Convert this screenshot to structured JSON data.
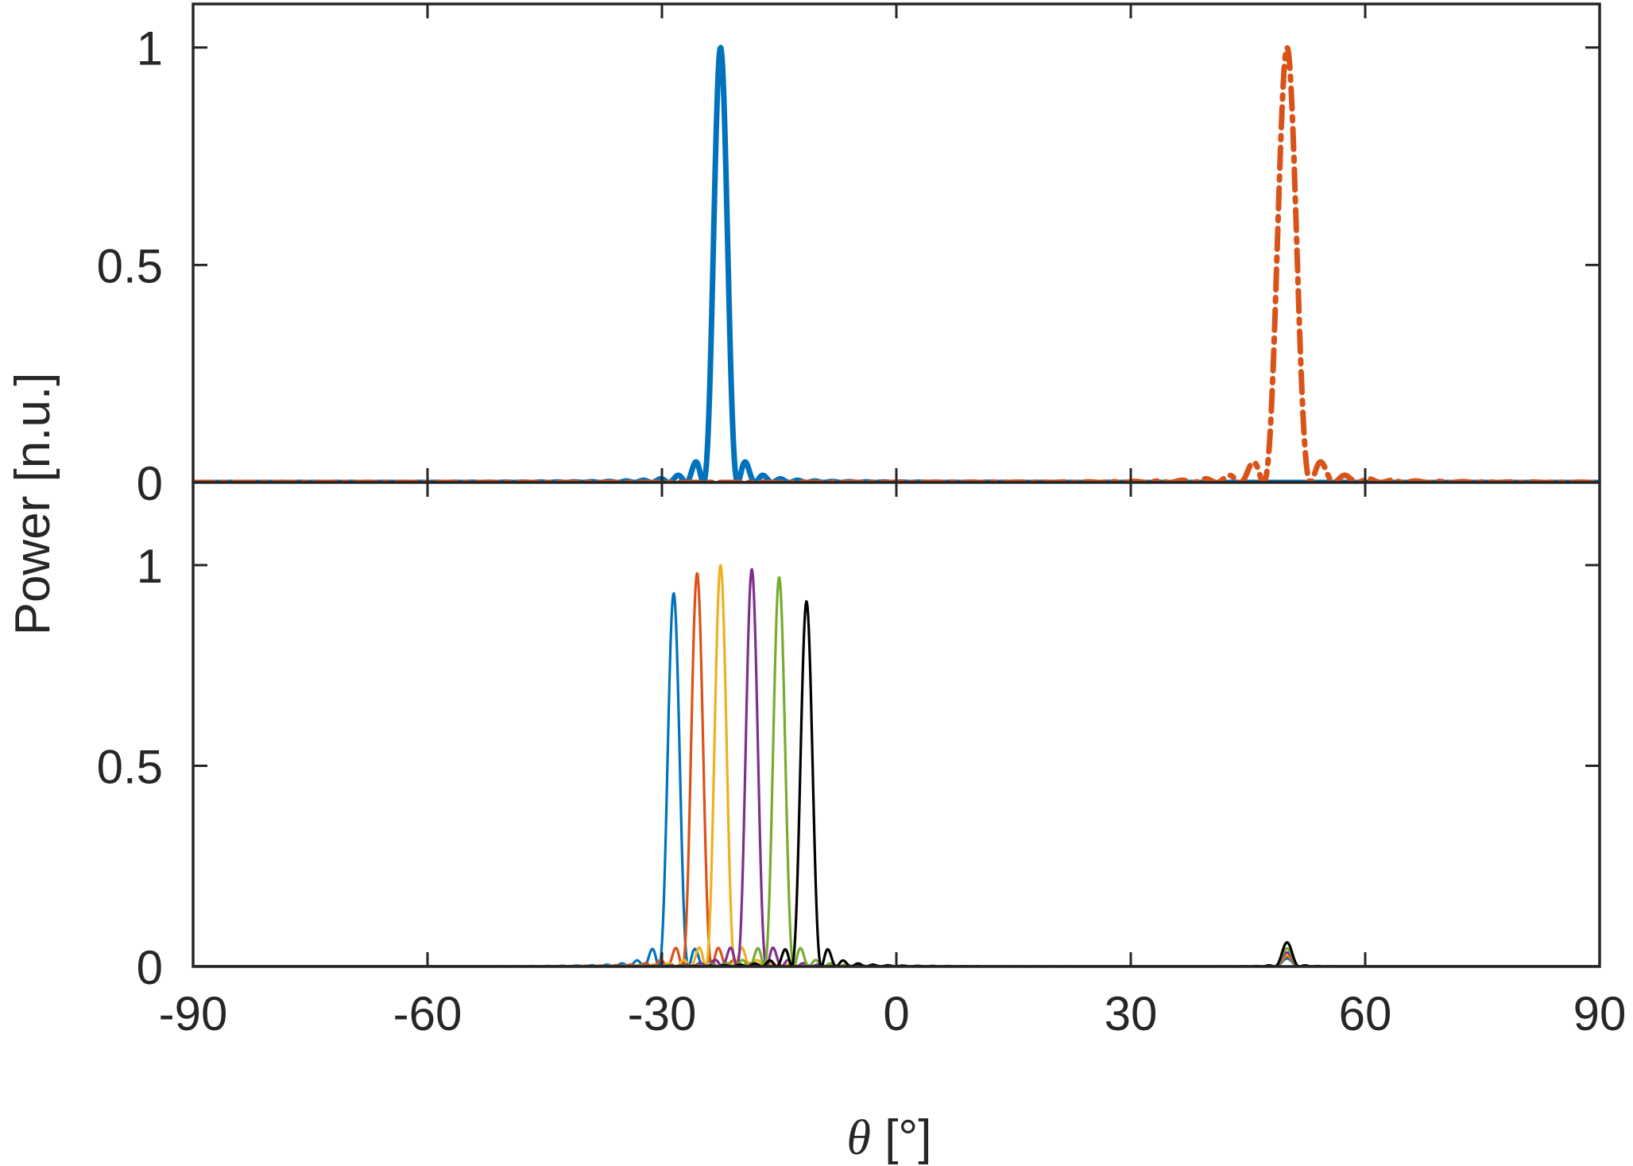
{
  "chart_data": [
    {
      "type": "line",
      "panel": "top",
      "xlim": [
        -90,
        90
      ],
      "ylim": [
        0,
        1.1
      ],
      "yticks": [
        0,
        0.5,
        1
      ],
      "ytick_labels": [
        "0",
        "0.5",
        "1"
      ],
      "xticks": [
        -90,
        -60,
        -30,
        0,
        30,
        60,
        90
      ],
      "grid": false,
      "series": [
        {
          "style": "solid",
          "color": "#0072BD",
          "width": "thick",
          "peak_x": -22.5,
          "peak_y": 1.0,
          "mainlobe_halfwidth": 2.2,
          "sidelobe_level": 0.035
        },
        {
          "style": "dash-dot",
          "color": "#D95319",
          "width": "thick",
          "peak_x": 50,
          "peak_y": 1.0,
          "mainlobe_halfwidth": 3.0,
          "sidelobe_level": 0.045
        }
      ]
    },
    {
      "type": "line",
      "panel": "bottom",
      "xlim": [
        -90,
        90
      ],
      "ylim": [
        0,
        1.0
      ],
      "yticks": [
        0,
        0.5,
        1
      ],
      "ytick_labels": [
        "0",
        "0.5",
        "1"
      ],
      "xticks": [
        -90,
        -60,
        -30,
        0,
        30,
        60,
        90
      ],
      "xtick_labels": [
        "-90",
        "-60",
        "-30",
        "0",
        "30",
        "60",
        "90"
      ],
      "grid": false,
      "series": [
        {
          "color": "#0072BD",
          "peak_x": -28.5,
          "peak_y": 0.93,
          "mainlobe_halfwidth": 1.9,
          "secondary_x": 50,
          "secondary_y": 0.02
        },
        {
          "color": "#D95319",
          "peak_x": -25.5,
          "peak_y": 0.98,
          "mainlobe_halfwidth": 1.9,
          "secondary_x": 50,
          "secondary_y": 0.025
        },
        {
          "color": "#EDB120",
          "peak_x": -22.5,
          "peak_y": 1.0,
          "mainlobe_halfwidth": 1.9,
          "secondary_x": 50,
          "secondary_y": 0.03
        },
        {
          "color": "#7E2F8E",
          "peak_x": -18.5,
          "peak_y": 0.99,
          "mainlobe_halfwidth": 1.9,
          "secondary_x": 50,
          "secondary_y": 0.035
        },
        {
          "color": "#77AC30",
          "peak_x": -15,
          "peak_y": 0.97,
          "mainlobe_halfwidth": 1.9,
          "secondary_x": 50,
          "secondary_y": 0.045
        },
        {
          "color": "#000000",
          "peak_x": -11.5,
          "peak_y": 0.91,
          "mainlobe_halfwidth": 1.9,
          "secondary_x": 50,
          "secondary_y": 0.06
        }
      ]
    }
  ],
  "ylabel": "Power [n.u.]",
  "xlabel_symbol": "θ",
  "xlabel_unit": " [°]"
}
